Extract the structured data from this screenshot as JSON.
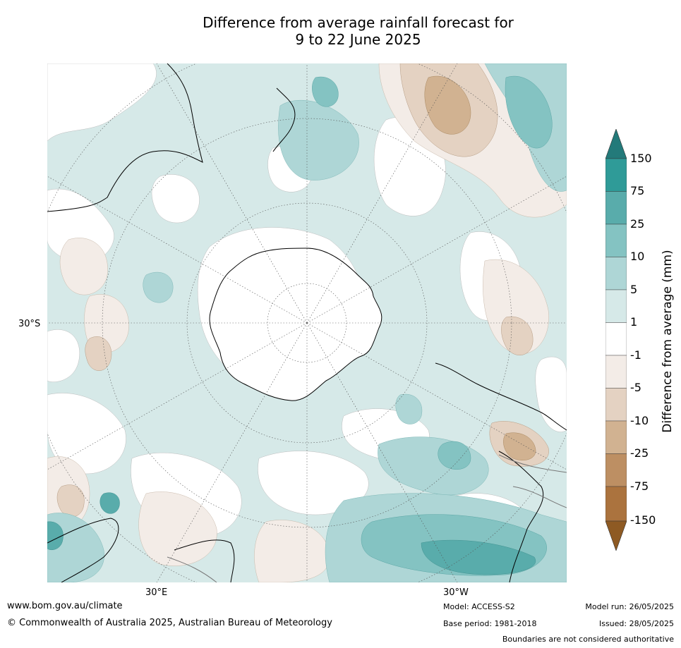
{
  "title_line1": "Difference from average rainfall forecast for",
  "title_line2": "9 to 22 June 2025",
  "map": {
    "lat_label": "30°S",
    "lon_labels": {
      "east": "30°E",
      "west": "30°W"
    },
    "projection": "south polar stereographic"
  },
  "colorbar": {
    "title": "Difference from average (mm)",
    "ticks": [
      "150",
      "75",
      "25",
      "10",
      "5",
      "1",
      "-1",
      "-5",
      "-10",
      "-25",
      "-75",
      "-150"
    ],
    "colors": {
      "above_150": "#237a7a",
      "75_150": "#2f9b98",
      "25_75": "#59acab",
      "10_25": "#84c3c2",
      "5_10": "#aed6d6",
      "1_5": "#d6e9e8",
      "neg1_1": "#ffffff",
      "neg5_neg1": "#f3ece7",
      "neg10_neg5": "#e4d2c2",
      "neg25_neg10": "#d1b291",
      "neg75_neg25": "#bd8f63",
      "neg150_neg75": "#ab733e",
      "below_neg150": "#8e5a23"
    }
  },
  "footer": {
    "url": "www.bom.gov.au/climate",
    "copyright": "© Commonwealth of Australia 2025, Australian Bureau of Meteorology",
    "model": "Model: ACCESS-S2",
    "base_period": "Base period: 1981-2018",
    "model_run": "Model run: 26/05/2025",
    "issued": "Issued: 28/05/2025",
    "disclaimer": "Boundaries are not considered authoritative"
  }
}
